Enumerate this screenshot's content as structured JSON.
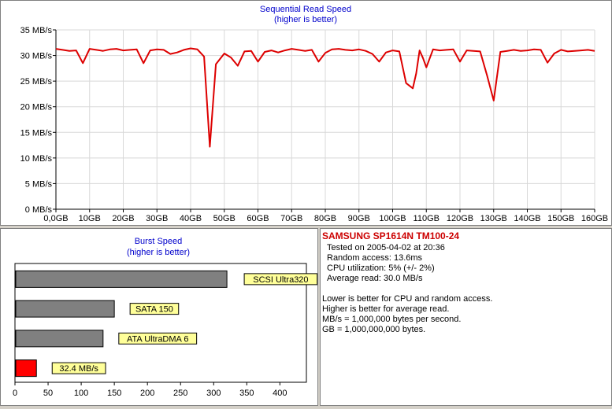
{
  "chart_data": [
    {
      "type": "line",
      "title": "Sequential Read Speed",
      "subtitle": "(higher is better)",
      "x_ticks": [
        "0,0GB",
        "10GB",
        "20GB",
        "30GB",
        "40GB",
        "50GB",
        "60GB",
        "70GB",
        "80GB",
        "90GB",
        "100GB",
        "110GB",
        "120GB",
        "130GB",
        "140GB",
        "150GB",
        "160GB"
      ],
      "y_ticks": [
        "0 MB/s",
        "5 MB/s",
        "10 MB/s",
        "15 MB/s",
        "20 MB/s",
        "25 MB/s",
        "30 MB/s",
        "35 MB/s"
      ],
      "xlim": [
        0,
        160
      ],
      "ylim": [
        0,
        35
      ],
      "grid": true,
      "color": "#dd0000",
      "x": [
        0,
        2,
        4,
        6,
        8,
        10,
        12,
        14,
        16,
        18,
        20,
        22,
        24,
        26,
        28,
        30,
        32,
        34,
        36,
        38,
        40,
        42,
        44,
        45.7,
        47.5,
        50,
        52,
        54,
        56,
        58,
        60,
        62,
        64,
        66,
        68,
        70,
        72,
        74,
        76,
        78,
        80,
        82,
        84,
        86,
        88,
        90,
        92,
        94,
        96,
        98,
        100,
        102,
        104,
        106,
        107,
        108,
        109,
        110,
        112,
        114,
        116,
        118,
        120,
        122,
        124,
        126,
        128,
        130,
        132,
        134,
        136,
        138,
        140,
        142,
        144,
        146,
        148,
        150,
        152,
        154,
        156,
        158,
        160
      ],
      "y": [
        31.3,
        31.1,
        30.9,
        31.0,
        28.5,
        31.3,
        31.1,
        30.9,
        31.2,
        31.3,
        31.0,
        31.1,
        31.2,
        28.5,
        31.0,
        31.2,
        31.1,
        30.3,
        30.6,
        31.1,
        31.4,
        31.2,
        29.8,
        12.2,
        28.3,
        30.4,
        29.6,
        28.0,
        30.8,
        30.9,
        28.8,
        30.7,
        31.0,
        30.6,
        31.0,
        31.3,
        31.1,
        30.9,
        31.1,
        28.8,
        30.5,
        31.2,
        31.3,
        31.1,
        31.0,
        31.2,
        30.9,
        30.3,
        28.8,
        30.6,
        31.0,
        30.8,
        24.6,
        23.6,
        26.5,
        31.0,
        29.5,
        27.7,
        31.2,
        31.0,
        31.1,
        31.2,
        28.8,
        31.0,
        30.9,
        30.8,
        26.2,
        21.2,
        30.7,
        30.9,
        31.1,
        30.9,
        31.0,
        31.2,
        31.1,
        28.6,
        30.4,
        31.1,
        30.8,
        30.9,
        31.0,
        31.1,
        30.9
      ]
    },
    {
      "type": "bar",
      "orientation": "horizontal",
      "title": "Burst Speed",
      "subtitle": "(higher is better)",
      "categories": [
        "SCSI Ultra320",
        "SATA 150",
        "ATA UltraDMA 6",
        "32.4 MB/s"
      ],
      "values": [
        320,
        150,
        133,
        32.4
      ],
      "colors": [
        "#808080",
        "#808080",
        "#808080",
        "#ff0000"
      ],
      "x_ticks": [
        0,
        50,
        100,
        150,
        200,
        250,
        300,
        350,
        400
      ],
      "xlim": [
        0,
        440
      ],
      "grid": false
    }
  ],
  "info": {
    "title": "SAMSUNG SP1614N TM100-24",
    "lines": [
      "Tested on 2005-04-02 at 20:36",
      "Random access: 13.6ms",
      "CPU utilization: 5% (+/- 2%)",
      "Average read: 30.0 MB/s"
    ],
    "notes": [
      "Lower is better for CPU and random access.",
      "Higher is better for average read.",
      "MB/s = 1,000,000 bytes per second.",
      "GB = 1,000,000,000 bytes."
    ]
  }
}
